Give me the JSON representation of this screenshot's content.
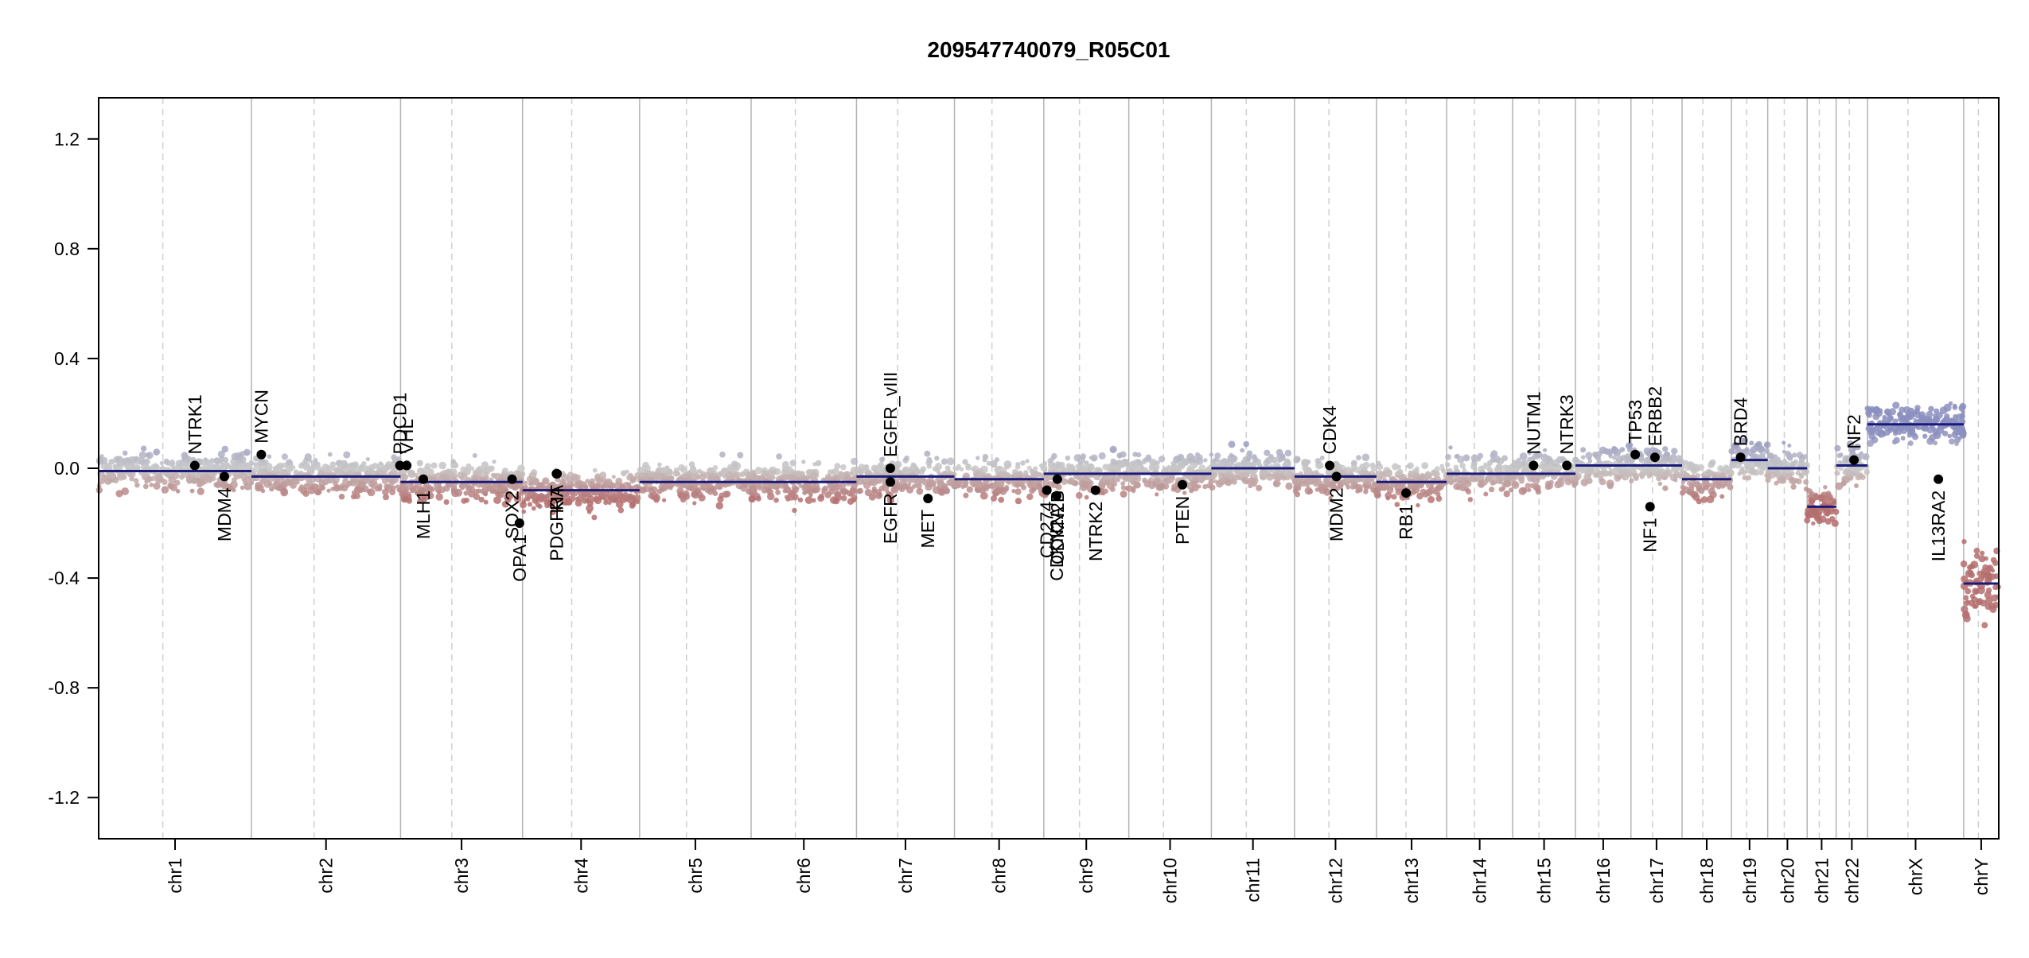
{
  "chart_data": {
    "type": "scatter",
    "title": "209547740079_R05C01",
    "xlabel": "",
    "ylabel": "",
    "ylim": [
      -1.35,
      1.35
    ],
    "y_ticks": [
      "1.2",
      "0.8",
      "0.4",
      "0.0",
      "-0.4",
      "-0.8",
      "-1.2"
    ],
    "grid": false,
    "colors": {
      "gain": "#8c8fbe",
      "neutral": "#c9c9c9",
      "loss": "#b56f6f",
      "segment": "#1a1a7a",
      "gene": "#000000",
      "boundary": "#b3b3b3"
    },
    "chromosomes": [
      {
        "name": "chr1",
        "length": 248,
        "segments": [
          {
            "start": 0,
            "end": 248,
            "value": -0.01
          }
        ]
      },
      {
        "name": "chr2",
        "length": 242,
        "segments": [
          {
            "start": 0,
            "end": 242,
            "value": -0.03
          }
        ]
      },
      {
        "name": "chr3",
        "length": 198,
        "segments": [
          {
            "start": 0,
            "end": 198,
            "value": -0.05
          }
        ]
      },
      {
        "name": "chr4",
        "length": 190,
        "segments": [
          {
            "start": 0,
            "end": 190,
            "value": -0.08
          }
        ]
      },
      {
        "name": "chr5",
        "length": 181,
        "segments": [
          {
            "start": 0,
            "end": 181,
            "value": -0.05
          }
        ]
      },
      {
        "name": "chr6",
        "length": 171,
        "segments": [
          {
            "start": 0,
            "end": 171,
            "value": -0.05
          }
        ]
      },
      {
        "name": "chr7",
        "length": 159,
        "segments": [
          {
            "start": 0,
            "end": 159,
            "value": -0.03
          }
        ]
      },
      {
        "name": "chr8",
        "length": 145,
        "segments": [
          {
            "start": 0,
            "end": 145,
            "value": -0.04
          }
        ]
      },
      {
        "name": "chr9",
        "length": 138,
        "segments": [
          {
            "start": 0,
            "end": 138,
            "value": -0.02
          }
        ]
      },
      {
        "name": "chr10",
        "length": 134,
        "segments": [
          {
            "start": 0,
            "end": 134,
            "value": -0.02
          }
        ]
      },
      {
        "name": "chr11",
        "length": 135,
        "segments": [
          {
            "start": 0,
            "end": 135,
            "value": 0.0
          }
        ]
      },
      {
        "name": "chr12",
        "length": 133,
        "segments": [
          {
            "start": 0,
            "end": 133,
            "value": -0.03
          }
        ]
      },
      {
        "name": "chr13",
        "length": 114,
        "segments": [
          {
            "start": 0,
            "end": 114,
            "value": -0.05
          }
        ]
      },
      {
        "name": "chr14",
        "length": 107,
        "segments": [
          {
            "start": 0,
            "end": 107,
            "value": -0.02
          }
        ]
      },
      {
        "name": "chr15",
        "length": 102,
        "segments": [
          {
            "start": 0,
            "end": 102,
            "value": -0.02
          }
        ]
      },
      {
        "name": "chr16",
        "length": 90,
        "segments": [
          {
            "start": 0,
            "end": 90,
            "value": 0.01
          }
        ]
      },
      {
        "name": "chr17",
        "length": 83,
        "segments": [
          {
            "start": 0,
            "end": 83,
            "value": 0.01
          }
        ]
      },
      {
        "name": "chr18",
        "length": 80,
        "segments": [
          {
            "start": 0,
            "end": 80,
            "value": -0.04
          }
        ]
      },
      {
        "name": "chr19",
        "length": 59,
        "segments": [
          {
            "start": 0,
            "end": 59,
            "value": 0.03
          }
        ]
      },
      {
        "name": "chr20",
        "length": 64,
        "segments": [
          {
            "start": 0,
            "end": 64,
            "value": 0.0
          }
        ]
      },
      {
        "name": "chr21",
        "length": 47,
        "segments": [
          {
            "start": 0,
            "end": 47,
            "value": -0.14
          }
        ]
      },
      {
        "name": "chr22",
        "length": 51,
        "segments": [
          {
            "start": 0,
            "end": 51,
            "value": 0.01
          }
        ]
      },
      {
        "name": "chrX",
        "length": 156,
        "segments": [
          {
            "start": 0,
            "end": 156,
            "value": 0.16
          }
        ]
      },
      {
        "name": "chrY",
        "length": 57,
        "segments": [
          {
            "start": 0,
            "end": 57,
            "value": -0.42
          }
        ]
      }
    ],
    "genes": [
      {
        "name": "NTRK1",
        "chr": "chr1",
        "pos": 156,
        "value": 0.01,
        "label_side": "above"
      },
      {
        "name": "MDM4",
        "chr": "chr1",
        "pos": 204,
        "value": -0.03,
        "label_side": "below"
      },
      {
        "name": "MYCN",
        "chr": "chr2",
        "pos": 16,
        "value": 0.05,
        "label_side": "above"
      },
      {
        "name": "PDCD1",
        "chr": "chr2",
        "pos": 241,
        "value": 0.01,
        "label_side": "above"
      },
      {
        "name": "VHL",
        "chr": "chr3",
        "pos": 10,
        "value": 0.01,
        "label_side": "above"
      },
      {
        "name": "MLH1",
        "chr": "chr3",
        "pos": 37,
        "value": -0.04,
        "label_side": "below"
      },
      {
        "name": "SOX2",
        "chr": "chr3",
        "pos": 181,
        "value": -0.04,
        "label_side": "below"
      },
      {
        "name": "OPA1",
        "chr": "chr3",
        "pos": 193,
        "value": -0.2,
        "label_side": "below"
      },
      {
        "name": "PDGFRA",
        "chr": "chr4",
        "pos": 55,
        "value": -0.02,
        "label_side": "below"
      },
      {
        "name": "KIT",
        "chr": "chr4",
        "pos": 56,
        "value": -0.02,
        "label_side": "below"
      },
      {
        "name": "EGFR_vIII",
        "chr": "chr7",
        "pos": 55,
        "value": 0.0,
        "label_side": "above"
      },
      {
        "name": "EGFR",
        "chr": "chr7",
        "pos": 55,
        "value": -0.05,
        "label_side": "below"
      },
      {
        "name": "MET",
        "chr": "chr7",
        "pos": 116,
        "value": -0.11,
        "label_side": "below"
      },
      {
        "name": "CD274",
        "chr": "chr9",
        "pos": 5,
        "value": -0.08,
        "label_side": "below"
      },
      {
        "name": "CDKN2A",
        "chr": "chr9",
        "pos": 21,
        "value": -0.1,
        "label_side": "below"
      },
      {
        "name": "CDKN2B",
        "chr": "chr9",
        "pos": 22,
        "value": -0.04,
        "label_side": "below"
      },
      {
        "name": "NTRK2",
        "chr": "chr9",
        "pos": 84,
        "value": -0.08,
        "label_side": "below"
      },
      {
        "name": "PTEN",
        "chr": "chr10",
        "pos": 87,
        "value": -0.06,
        "label_side": "below"
      },
      {
        "name": "CDK4",
        "chr": "chr12",
        "pos": 57,
        "value": 0.01,
        "label_side": "above"
      },
      {
        "name": "MDM2",
        "chr": "chr12",
        "pos": 68,
        "value": -0.03,
        "label_side": "below"
      },
      {
        "name": "RB1",
        "chr": "chr13",
        "pos": 48,
        "value": -0.09,
        "label_side": "below"
      },
      {
        "name": "NUTM1",
        "chr": "chr15",
        "pos": 34,
        "value": 0.01,
        "label_side": "above"
      },
      {
        "name": "NTRK3",
        "chr": "chr15",
        "pos": 88,
        "value": 0.01,
        "label_side": "above"
      },
      {
        "name": "TP53",
        "chr": "chr17",
        "pos": 7,
        "value": 0.05,
        "label_side": "above"
      },
      {
        "name": "NF1",
        "chr": "chr17",
        "pos": 31,
        "value": -0.14,
        "label_side": "below"
      },
      {
        "name": "ERBB2",
        "chr": "chr17",
        "pos": 39,
        "value": 0.04,
        "label_side": "above"
      },
      {
        "name": "BRD4",
        "chr": "chr19",
        "pos": 15,
        "value": 0.04,
        "label_side": "above"
      },
      {
        "name": "NF2",
        "chr": "chr22",
        "pos": 29,
        "value": 0.03,
        "label_side": "above"
      },
      {
        "name": "IL13RA2",
        "chr": "chrX",
        "pos": 115,
        "value": -0.04,
        "label_side": "below"
      }
    ]
  }
}
